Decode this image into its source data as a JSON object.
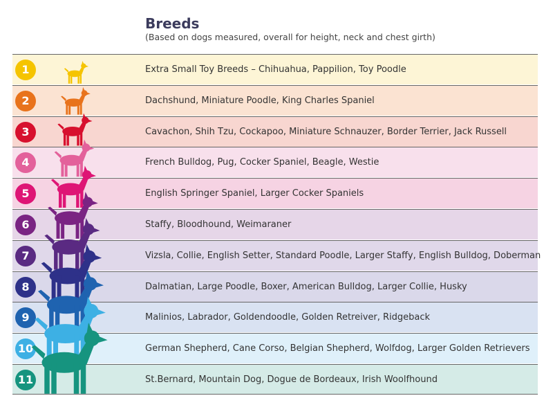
{
  "header": {
    "title": "Breeds",
    "subtitle": "(Based on dogs measured, overall for height, neck and chest girth)"
  },
  "table": {
    "rows": [
      {
        "number": "1",
        "breeds": "Extra Small Toy Breeds – Chihuahua, Pappilion, Toy Poodle"
      },
      {
        "number": "2",
        "breeds": "Dachshund, Miniature Poodle, King Charles Spaniel"
      },
      {
        "number": "3",
        "breeds": "Cavachon, Shih Tzu, Cockapoo, Miniature Schnauzer, Border Terrier, Jack Russell"
      },
      {
        "number": "4",
        "breeds": "French Bulldog, Pug, Cocker Spaniel, Beagle, Westie"
      },
      {
        "number": "5",
        "breeds": "English Springer Spaniel, Larger Cocker Spaniels"
      },
      {
        "number": "6",
        "breeds": "Staffy, Bloodhound, Weimaraner"
      },
      {
        "number": "7",
        "breeds": "Vizsla, Collie, English Setter, Standard Poodle, Larger Staffy, English Bulldog, Doberman"
      },
      {
        "number": "8",
        "breeds": "Dalmatian, Large Poodle, Boxer, American Bulldog, Larger Collie, Husky"
      },
      {
        "number": "9",
        "breeds": "Malinios, Labrador, Goldendoodle, Golden Retreiver, Ridgeback"
      },
      {
        "number": "10",
        "breeds": "German Shepherd, Cane Corso, Belgian Shepherd, Wolfdog, Larger Golden Retrievers"
      },
      {
        "number": "11",
        "breeds": "St.Bernard, Mountain Dog, Dogue de Bordeaux, Irish Woolfhound"
      }
    ]
  }
}
